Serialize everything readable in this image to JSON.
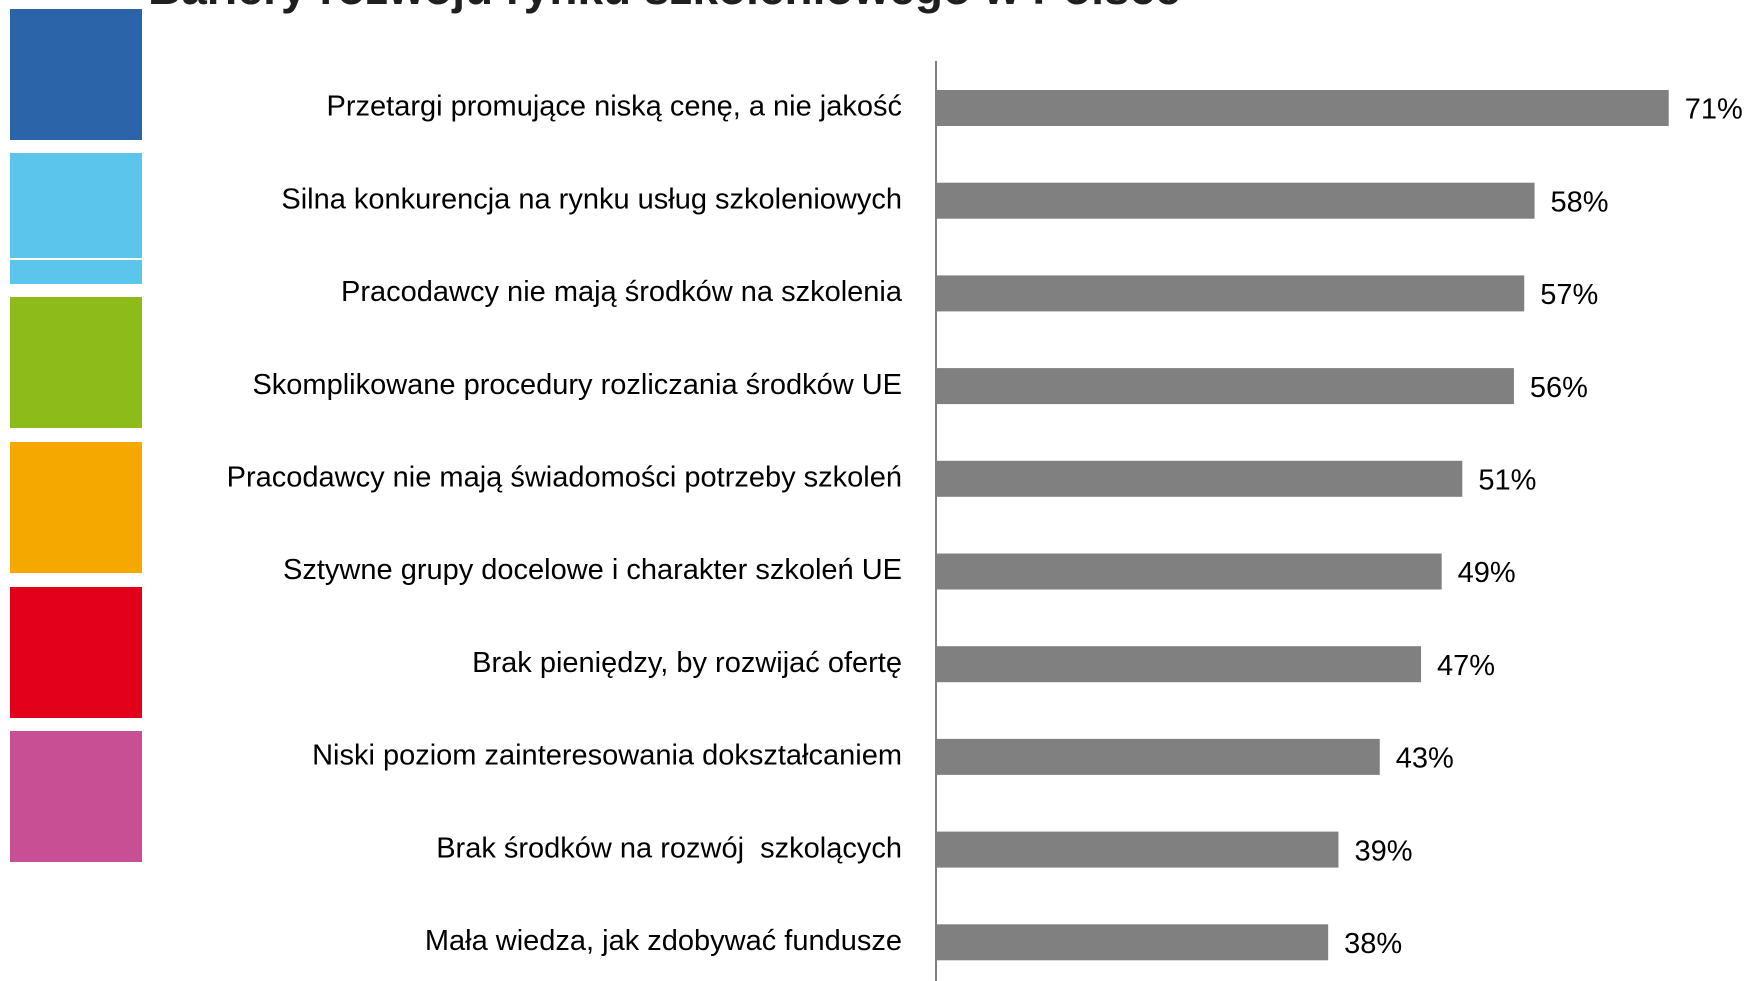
{
  "chart_data": {
    "type": "bar",
    "orientation": "horizontal",
    "title": "Bariery rozwoju rynku szkoleniowego w Polsce",
    "categories": [
      "Przetargi promujące niską cenę, a nie jakość",
      "Silna konkurencja na rynku usług szkoleniowych",
      "Pracodawcy nie mają środków na szkolenia",
      "Skomplikowane procedury rozliczania środków UE",
      "Pracodawcy nie mają świadomości potrzeby szkoleń",
      "Sztywne grupy docelowe i charakter szkoleń UE",
      "Brak pieniędzy, by rozwijać ofertę",
      "Niski poziom zainteresowania dokształcaniem",
      "Brak środków na rozwój  szkolących",
      "Mała wiedza, jak zdobywać fundusze"
    ],
    "values": [
      71,
      58,
      57,
      56,
      51,
      49,
      47,
      43,
      39,
      38
    ],
    "value_labels": [
      "71%",
      "58%",
      "57%",
      "56%",
      "51%",
      "49%",
      "47%",
      "43%",
      "39%",
      "38%"
    ],
    "color": "#808080"
  }
}
